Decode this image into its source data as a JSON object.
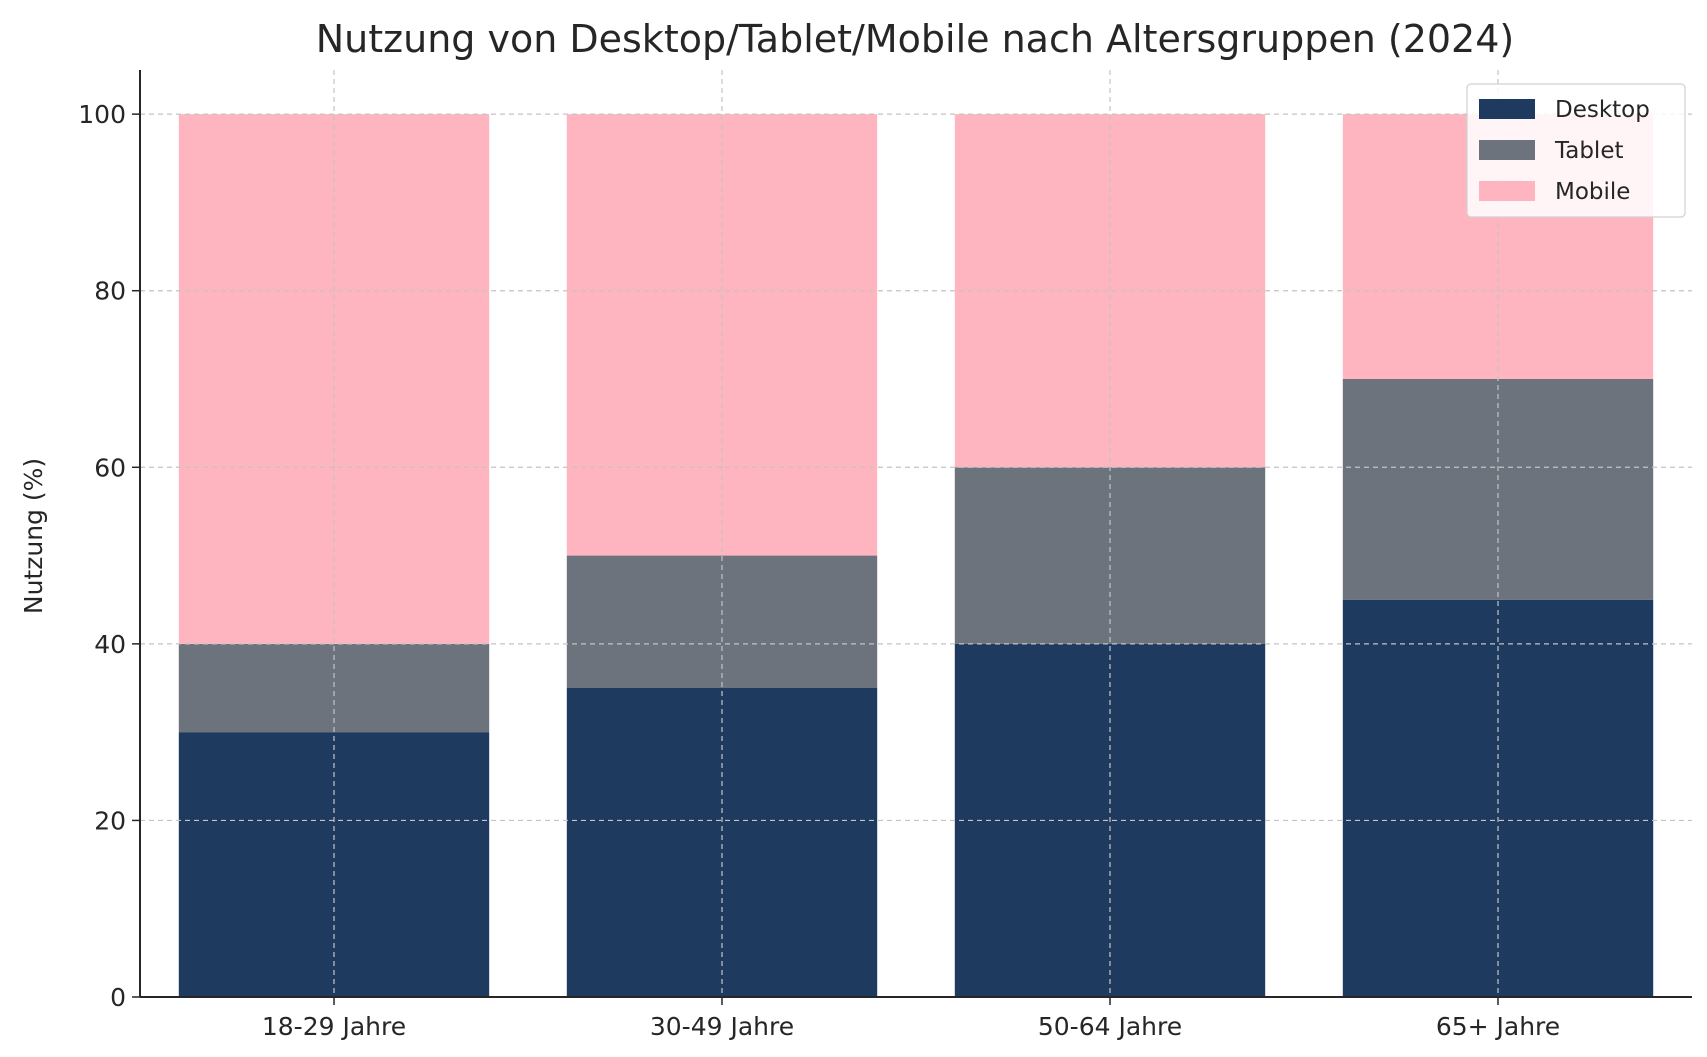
{
  "chart_data": {
    "type": "bar",
    "stacked": true,
    "title": "Nutzung von Desktop/Tablet/Mobile nach Altersgruppen (2024)",
    "xlabel": "",
    "ylabel": "Nutzung (%)",
    "categories": [
      "18-29 Jahre",
      "30-49 Jahre",
      "50-64 Jahre",
      "65+ Jahre"
    ],
    "series": [
      {
        "name": "Desktop",
        "values": [
          30,
          35,
          40,
          45
        ],
        "color": "#1f3a5f"
      },
      {
        "name": "Tablet",
        "values": [
          10,
          15,
          20,
          25
        ],
        "color": "#6c737c"
      },
      {
        "name": "Mobile",
        "values": [
          60,
          50,
          40,
          30
        ],
        "color": "#ffb5c0"
      }
    ],
    "ylim": [
      0,
      105
    ],
    "yticks": [
      0,
      20,
      40,
      60,
      80,
      100
    ],
    "grid": true,
    "legend": "top-right"
  }
}
